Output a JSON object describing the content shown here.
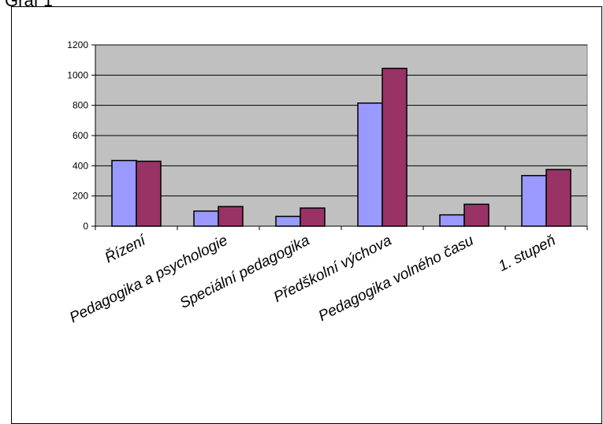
{
  "caption": "Graf 1",
  "chart_data": {
    "type": "bar",
    "categories": [
      "Řízení",
      "Pedagogika a psychologie",
      "Speciální pedagogika",
      "Předškolní výchova",
      "Pedagogika volného času",
      "1. stupeň"
    ],
    "series": [
      {
        "values": [
          435,
          100,
          65,
          815,
          75,
          335
        ]
      },
      {
        "values": [
          430,
          130,
          120,
          1045,
          145,
          375
        ]
      }
    ],
    "ylim": [
      0,
      1200
    ],
    "yticks": [
      0,
      200,
      400,
      600,
      800,
      1000,
      1200
    ],
    "grid": true,
    "title": "",
    "xlabel": "",
    "ylabel": "",
    "colors": {
      "plot_background": "#c0c0c0",
      "series": [
        "#9999ff",
        "#993366"
      ],
      "gridline": "#000000"
    }
  }
}
